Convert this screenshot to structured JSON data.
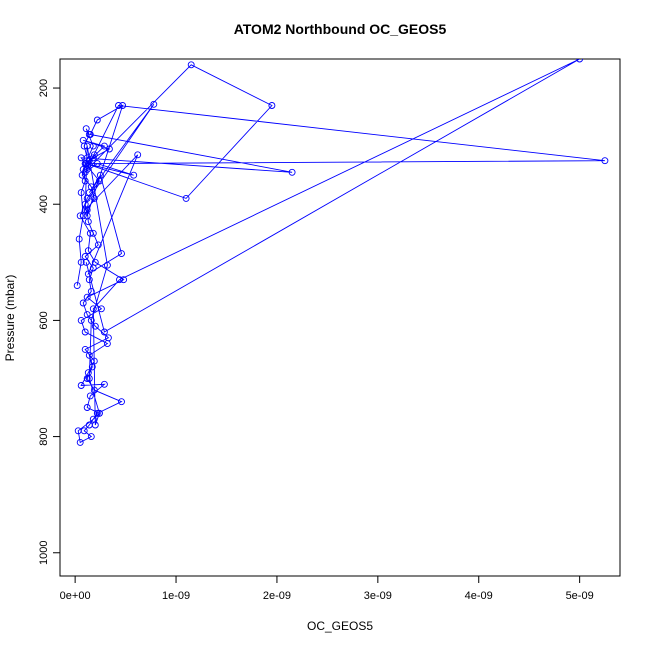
{
  "chart_data": {
    "type": "line",
    "title": "ATOM2 Northbound OC_GEOS5",
    "xlabel": "OC_GEOS5",
    "ylabel": "Pressure (mbar)",
    "x_ticks": [
      0,
      1e-09,
      2e-09,
      3e-09,
      4e-09,
      5e-09
    ],
    "x_tick_labels": [
      "0e+00",
      "1e-09",
      "2e-09",
      "3e-09",
      "4e-09",
      "5e-09"
    ],
    "y_ticks": [
      200,
      400,
      600,
      800,
      1000
    ],
    "y_tick_labels": [
      "200",
      "400",
      "600",
      "800",
      "1000"
    ],
    "xlim": [
      -1.5e-10,
      5.4e-09
    ],
    "ylim": [
      1040,
      150
    ],
    "y_reversed": true,
    "line_color": "#0000ff",
    "marker": "open-circle",
    "grid": false,
    "series": [
      {
        "x": [
          2e-11,
          6e-11,
          4e-11,
          8e-11,
          6e-11,
          1e-10,
          8e-11,
          1.2e-10,
          9e-11,
          1.4e-10,
          1.1e-10,
          1.8e-10,
          1e-10,
          2.4e-10,
          1.2e-10,
          5e-11,
          1.5e-10,
          1.3e-10,
          2e-10,
          4.8e-10,
          1.2e-10,
          2.6e-10,
          6e-11,
          1e-10,
          3.2e-10,
          1.4e-10,
          1.7e-10,
          1.2e-10,
          1.9e-10,
          4.6e-10,
          2.2e-10,
          1.4e-10,
          9e-11,
          1.6e-10,
          5e-11,
          3e-11,
          1.8e-10,
          2.4e-10,
          1.2e-10,
          1.5e-10,
          2.9e-10,
          6e-11,
          1.3e-10,
          1.9e-10,
          1e-10,
          3.3e-10,
          2e-10,
          1.2e-10,
          8e-11,
          1.6e-10,
          1.4e-10,
          1.8e-10,
          1e-10,
          2.3e-10,
          1.8e-10,
          1.3e-10,
          1.2e-10,
          1.9e-10,
          1.6e-10,
          7e-11,
          1.1e-10,
          1.1e-09,
          1.95e-09,
          1.15e-09,
          1.2e-10,
          1.9e-10,
          1.4e-10,
          2.9e-10,
          8e-11,
          3.4e-10,
          1.8e-10,
          1.1e-10,
          5.8e-10,
          2.2e-10,
          1e-10,
          4.3e-10,
          5.25e-09,
          1e-10,
          6e-11,
          2.15e-09,
          1.5e-10,
          2.2e-10,
          4.7e-10,
          1.2e-10,
          1e-10,
          7.8e-10,
          1.4e-10,
          2.5e-10,
          4.6e-10,
          1.3e-10,
          6.2e-10,
          1e-10,
          1.2e-10,
          3.2e-10,
          1.6e-10,
          1.4e-10,
          2.4e-10,
          2e-10,
          1.8e-10,
          4.4e-10,
          5e-09,
          2.9e-10,
          1.1e-10
        ],
        "y": [
          540,
          500,
          460,
          420,
          380,
          360,
          340,
          320,
          300,
          280,
          270,
          300,
          330,
          360,
          390,
          420,
          450,
          480,
          500,
          530,
          560,
          580,
          600,
          620,
          640,
          660,
          680,
          700,
          720,
          740,
          760,
          780,
          790,
          800,
          810,
          790,
          770,
          760,
          750,
          730,
          710,
          712,
          690,
          670,
          650,
          630,
          610,
          590,
          570,
          550,
          530,
          510,
          490,
          470,
          450,
          430,
          410,
          390,
          370,
          350,
          330,
          390,
          230,
          160,
          340,
          315,
          325,
          300,
          290,
          305,
          320,
          330,
          350,
          330,
          345,
          230,
          325,
          330,
          320,
          345,
          280,
          255,
          230,
          420,
          400,
          228,
          380,
          350,
          485,
          520,
          315,
          410,
          300,
          505,
          600,
          700,
          760,
          780,
          580,
          530,
          150,
          620,
          500
        ]
      }
    ]
  }
}
